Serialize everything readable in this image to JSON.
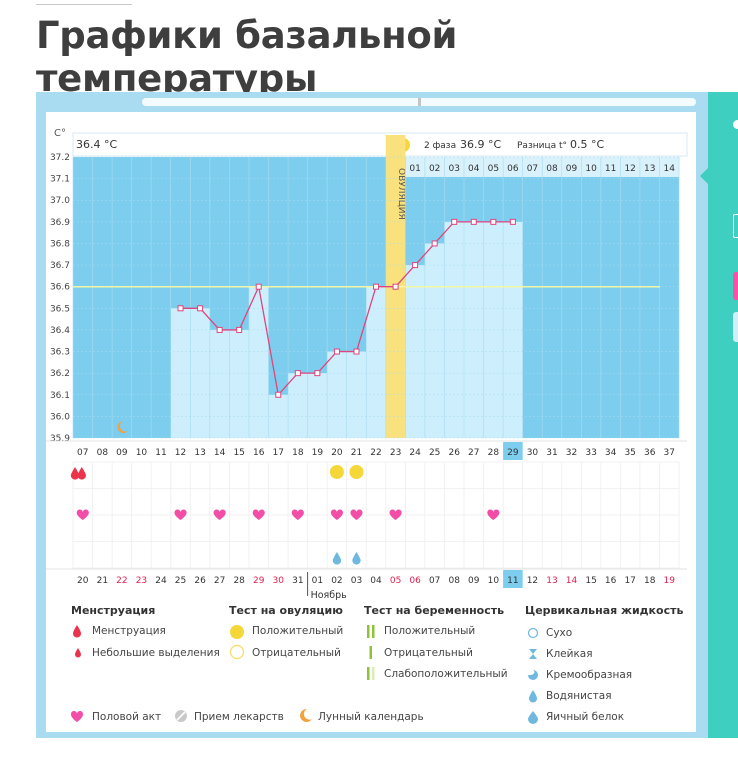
{
  "page": {
    "title": "Графики базальной температуры"
  },
  "header": {
    "phase1_temp": "36.4 °C",
    "phase2_label": "2 фаза",
    "phase2_temp": "36.9 °C",
    "diff_label": "Разница t°",
    "diff_value": "0.5 °C",
    "ovulation_label": "ОВУЛЯЦИЯ"
  },
  "chart_data": {
    "type": "line",
    "ylabel": "C°",
    "ylim": [
      35.9,
      37.2
    ],
    "yticks": [
      "37.2",
      "37.1",
      "37.0",
      "36.9",
      "36.8",
      "36.7",
      "36.6",
      "36.5",
      "36.4",
      "36.3",
      "36.2",
      "36.1",
      "36.0",
      "35.9"
    ],
    "coverline": 36.6,
    "cycle_days": [
      "07",
      "08",
      "09",
      "10",
      "11",
      "12",
      "13",
      "14",
      "15",
      "16",
      "17",
      "18",
      "19",
      "20",
      "21",
      "22",
      "23",
      "24",
      "25",
      "26",
      "27",
      "28",
      "29",
      "30",
      "31",
      "32",
      "33",
      "34",
      "35",
      "36",
      "37"
    ],
    "current_cycle_day": "29",
    "phase2_days": [
      "01",
      "02",
      "03",
      "04",
      "05",
      "06",
      "07",
      "08",
      "09",
      "10",
      "11",
      "12",
      "13",
      "14"
    ],
    "ovulation_day_index": 16,
    "temperatures": [
      null,
      null,
      null,
      null,
      null,
      36.5,
      36.5,
      36.4,
      36.4,
      36.6,
      36.1,
      36.2,
      36.2,
      36.3,
      36.3,
      36.6,
      36.6,
      36.7,
      36.8,
      36.9,
      36.9,
      36.9,
      36.9,
      null,
      null,
      null,
      null,
      null,
      null,
      null,
      null
    ],
    "dates": [
      "20",
      "21",
      "22",
      "23",
      "24",
      "25",
      "26",
      "27",
      "28",
      "29",
      "30",
      "31",
      "01",
      "02",
      "03",
      "04",
      "05",
      "06",
      "07",
      "08",
      "09",
      "10",
      "11",
      "12",
      "13",
      "14",
      "15",
      "16",
      "17",
      "18",
      "19"
    ],
    "weekend_date_indices": [
      2,
      3,
      9,
      10,
      16,
      17,
      24,
      25,
      30
    ],
    "current_date": "11",
    "month_label": "Ноябрь",
    "month_start_index": 12,
    "menstruation_indices": [
      0
    ],
    "spotting_indices": [],
    "ovulation_test_positive_indices": [
      13,
      14
    ],
    "intercourse_indices": [
      0,
      5,
      7,
      9,
      11,
      13,
      14,
      16,
      21
    ],
    "watery_mucus_indices": [
      13,
      14
    ],
    "moon_index": 2
  },
  "legend": {
    "menstruation_title": "Менструация",
    "menstruation": "Менструация",
    "spotting": "Небольшие выделения",
    "ovulation_test_title": "Тест на овуляцию",
    "ov_positive": "Положительный",
    "ov_negative": "Отрицательный",
    "pregnancy_test_title": "Тест на беременность",
    "preg_positive": "Положительный",
    "preg_negative": "Отрицательный",
    "preg_weak": "Слабоположительный",
    "cervical_title": "Цервикальная жидкость",
    "dry": "Сухо",
    "sticky": "Клейкая",
    "creamy": "Кремообразная",
    "watery": "Водянистая",
    "egg_white": "Яичный белок",
    "intercourse": "Половой акт",
    "medication": "Прием лекарств",
    "lunar": "Лунный календарь"
  },
  "colors": {
    "chart_bg": "#7dcdef",
    "bar": "#cdeffd",
    "line": "#e0457b",
    "ovulation": "#f9e27e",
    "coverline": "#f2f7a6",
    "heart": "#f24ea8",
    "drop_red": "#e9344b",
    "drop_blue": "#6fb8e0",
    "ov_test": "#f5d73a",
    "teal": "#3ecfc0",
    "moon": "#f2a23a"
  }
}
